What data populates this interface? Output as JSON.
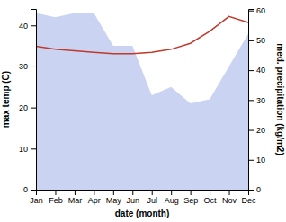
{
  "chart_data": {
    "type": "line",
    "categories": [
      "Jan",
      "Feb",
      "Mar",
      "Apr",
      "May",
      "Jun",
      "Jul",
      "Aug",
      "Sep",
      "Oct",
      "Nov",
      "Dec"
    ],
    "xlabel": "date (month)",
    "ylabel": "max temp (C)",
    "y2label": "med. precipitation (kg/m2)",
    "series": [
      {
        "type": "area",
        "color": "#b8c4ee",
        "values": [
          43,
          42,
          43,
          43,
          35,
          35,
          23,
          25,
          21,
          22,
          30,
          38
        ]
      },
      {
        "type": "line",
        "color": "#c0392b",
        "axis": "y2",
        "values": [
          48,
          47,
          46.5,
          46,
          45.5,
          45.5,
          46,
          47,
          49,
          53,
          58,
          56
        ]
      }
    ],
    "ylim": [
      0,
      44
    ],
    "yticks": [
      0,
      10,
      20,
      30,
      40
    ],
    "y2lim": [
      0,
      60.5
    ],
    "y2ticks": [
      0,
      10,
      20,
      30,
      40,
      50,
      60
    ]
  }
}
